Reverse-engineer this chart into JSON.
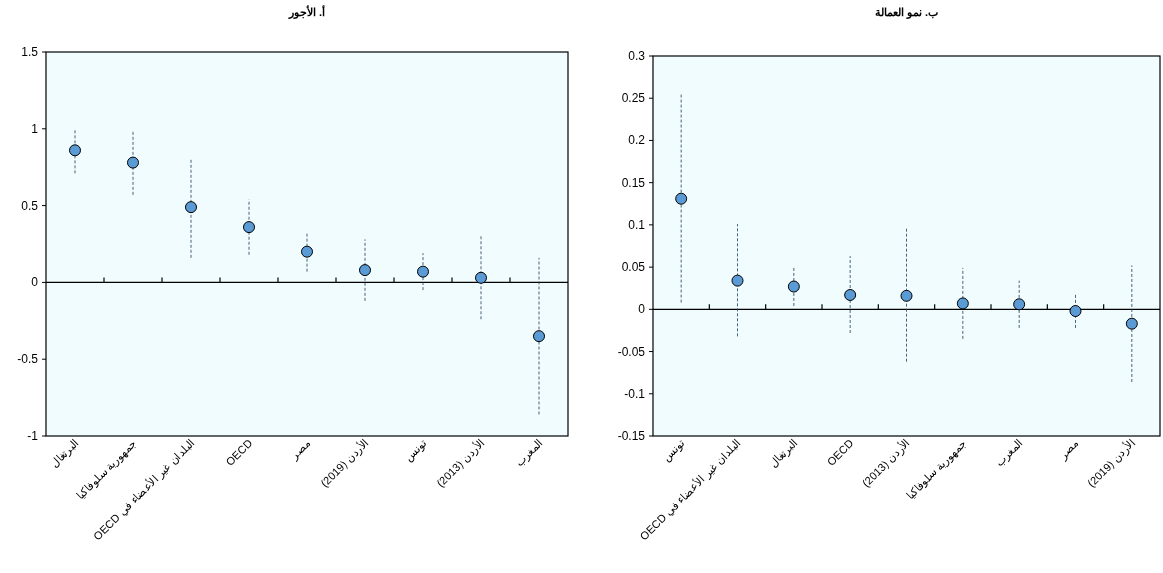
{
  "chart_data": [
    {
      "type": "scatter",
      "title": "أ. الأجور",
      "categories": [
        "البرتغال",
        "جمهورية سلوفاكيا",
        "البلدان غير الأعضاء في OECD",
        "OECD",
        "مصر",
        "الأردن (2019)",
        "تونس",
        "الأردن (2013)",
        "المغرب"
      ],
      "values": [
        0.86,
        0.78,
        0.49,
        0.36,
        0.2,
        0.08,
        0.07,
        0.03,
        -0.35
      ],
      "errors": [
        [
          0.71,
          1.0
        ],
        [
          0.57,
          0.99
        ],
        [
          0.16,
          0.81
        ],
        [
          0.18,
          0.54
        ],
        [
          0.07,
          0.33
        ],
        [
          -0.12,
          0.28
        ],
        [
          -0.05,
          0.19
        ],
        [
          -0.24,
          0.3
        ],
        [
          -0.86,
          0.16
        ]
      ],
      "color": "#5b9bd5",
      "marker": "circle",
      "ylim": [
        -1,
        1.5
      ],
      "yticks": [
        -1,
        -0.5,
        0,
        0.5,
        1,
        1.5
      ]
    },
    {
      "type": "scatter",
      "title": "ب. نمو العمالة",
      "categories": [
        "تونس",
        "البلدان غير الأعضاء في OECD",
        "البرتغال",
        "OECD",
        "الأردن (2013)",
        "جمهورية سلوفاكيا",
        "المغرب",
        "مصر",
        "الأردن (2019)"
      ],
      "values": [
        0.131,
        0.034,
        0.027,
        0.017,
        0.016,
        0.007,
        0.006,
        -0.002,
        -0.017
      ],
      "errors": [
        [
          0.008,
          0.255
        ],
        [
          -0.032,
          0.101
        ],
        [
          0.004,
          0.05
        ],
        [
          -0.028,
          0.063
        ],
        [
          -0.062,
          0.096
        ],
        [
          -0.035,
          0.049
        ],
        [
          -0.022,
          0.034
        ],
        [
          -0.022,
          0.018
        ],
        [
          -0.086,
          0.052
        ]
      ],
      "color": "#5b9bd5",
      "marker": "circle",
      "ylim": [
        -0.15,
        0.3
      ],
      "yticks": [
        -0.15,
        -0.1,
        -0.05,
        0,
        0.05,
        0.1,
        0.15,
        0.2,
        0.25,
        0.3
      ]
    }
  ]
}
